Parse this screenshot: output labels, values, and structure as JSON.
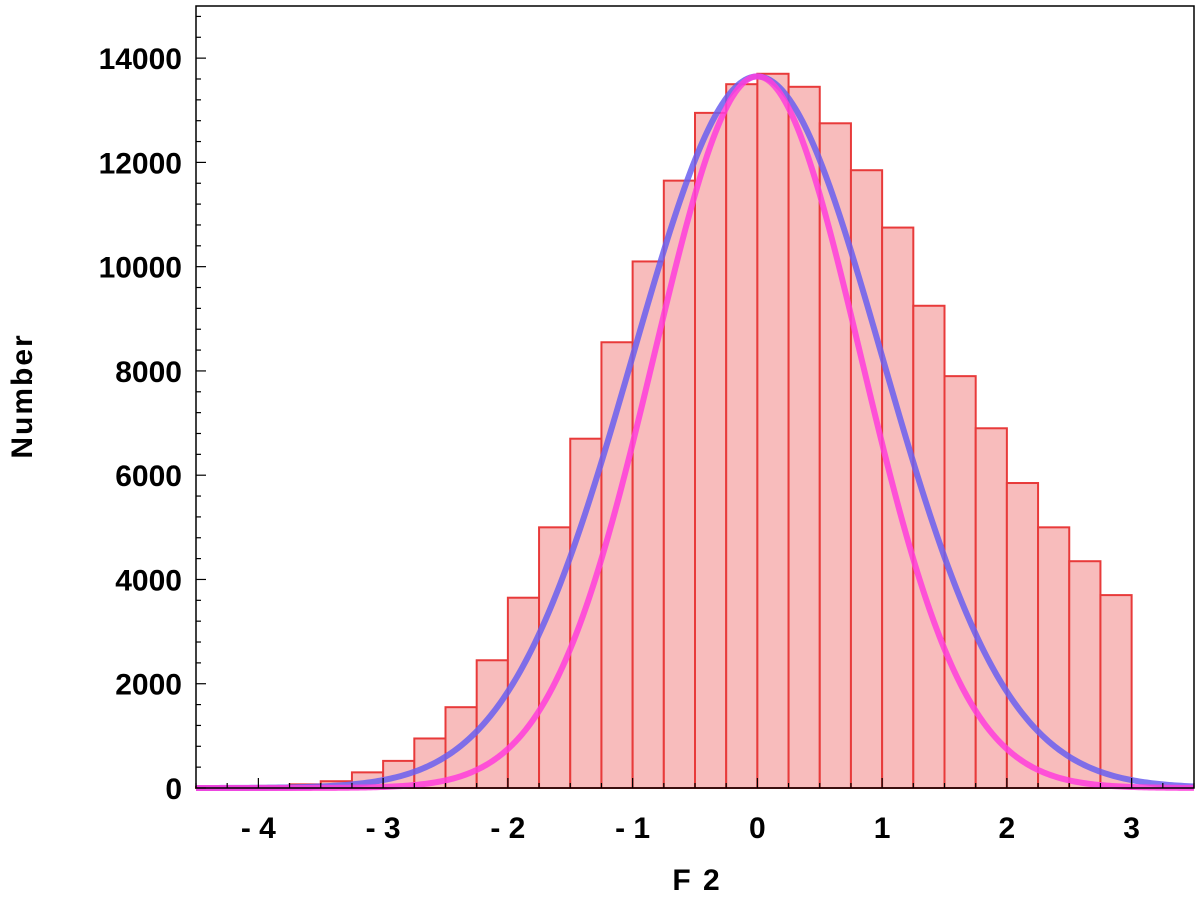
{
  "chart_data": {
    "type": "bar",
    "xlabel": "F 2",
    "ylabel": "Number",
    "xlim": [
      -4.5,
      3.5
    ],
    "ylim": [
      0,
      15000
    ],
    "xticks": [
      {
        "value": -4,
        "label": "- 4"
      },
      {
        "value": -3,
        "label": "- 3"
      },
      {
        "value": -2,
        "label": "- 2"
      },
      {
        "value": -1,
        "label": "- 1"
      },
      {
        "value": 0,
        "label": "0"
      },
      {
        "value": 1,
        "label": "1"
      },
      {
        "value": 2,
        "label": "2"
      },
      {
        "value": 3,
        "label": "3"
      }
    ],
    "yticks": [
      {
        "value": 0,
        "label": "0"
      },
      {
        "value": 2000,
        "label": "2000"
      },
      {
        "value": 4000,
        "label": "4000"
      },
      {
        "value": 6000,
        "label": "6000"
      },
      {
        "value": 8000,
        "label": "8000"
      },
      {
        "value": 10000,
        "label": "10000"
      },
      {
        "value": 12000,
        "label": "12000"
      },
      {
        "value": 14000,
        "label": "14000"
      }
    ],
    "grid": false,
    "histogram": {
      "bin_width": 0.25,
      "bins": [
        {
          "x0": -4.5,
          "x1": -4.25,
          "value": 20
        },
        {
          "x0": -4.25,
          "x1": -4.0,
          "value": 30
        },
        {
          "x0": -4.0,
          "x1": -3.75,
          "value": 40
        },
        {
          "x0": -3.75,
          "x1": -3.5,
          "value": 70
        },
        {
          "x0": -3.5,
          "x1": -3.25,
          "value": 130
        },
        {
          "x0": -3.25,
          "x1": -3.0,
          "value": 300
        },
        {
          "x0": -3.0,
          "x1": -2.75,
          "value": 520
        },
        {
          "x0": -2.75,
          "x1": -2.5,
          "value": 950
        },
        {
          "x0": -2.5,
          "x1": -2.25,
          "value": 1550
        },
        {
          "x0": -2.25,
          "x1": -2.0,
          "value": 2450
        },
        {
          "x0": -2.0,
          "x1": -1.75,
          "value": 3650
        },
        {
          "x0": -1.75,
          "x1": -1.5,
          "value": 5000
        },
        {
          "x0": -1.5,
          "x1": -1.25,
          "value": 6700
        },
        {
          "x0": -1.25,
          "x1": -1.0,
          "value": 8550
        },
        {
          "x0": -1.0,
          "x1": -0.75,
          "value": 10100
        },
        {
          "x0": -0.75,
          "x1": -0.5,
          "value": 11650
        },
        {
          "x0": -0.5,
          "x1": -0.25,
          "value": 12950
        },
        {
          "x0": -0.25,
          "x1": 0.0,
          "value": 13500
        },
        {
          "x0": 0.0,
          "x1": 0.25,
          "value": 13700
        },
        {
          "x0": 0.25,
          "x1": 0.5,
          "value": 13450
        },
        {
          "x0": 0.5,
          "x1": 0.75,
          "value": 12750
        },
        {
          "x0": 0.75,
          "x1": 1.0,
          "value": 11850
        },
        {
          "x0": 1.0,
          "x1": 1.25,
          "value": 10750
        },
        {
          "x0": 1.25,
          "x1": 1.5,
          "value": 9250
        },
        {
          "x0": 1.5,
          "x1": 1.75,
          "value": 7900
        },
        {
          "x0": 1.75,
          "x1": 2.0,
          "value": 6900
        },
        {
          "x0": 2.0,
          "x1": 2.25,
          "value": 5850
        },
        {
          "x0": 2.25,
          "x1": 2.5,
          "value": 5000
        },
        {
          "x0": 2.5,
          "x1": 2.75,
          "value": 4350
        },
        {
          "x0": 2.75,
          "x1": 3.0,
          "value": 3700
        }
      ],
      "fill_color": "#f8bcbc",
      "edge_color": "#e83a3a"
    },
    "curves": [
      {
        "kind": "gaussian",
        "mean": 0.0,
        "sd": 1.0,
        "peak": 13650,
        "color": "#6a5ff0",
        "opacity": 0.85
      },
      {
        "kind": "gaussian",
        "mean": 0.0,
        "sd": 0.83,
        "peak": 13650,
        "color": "#ff3ddc",
        "opacity": 0.85
      }
    ]
  }
}
